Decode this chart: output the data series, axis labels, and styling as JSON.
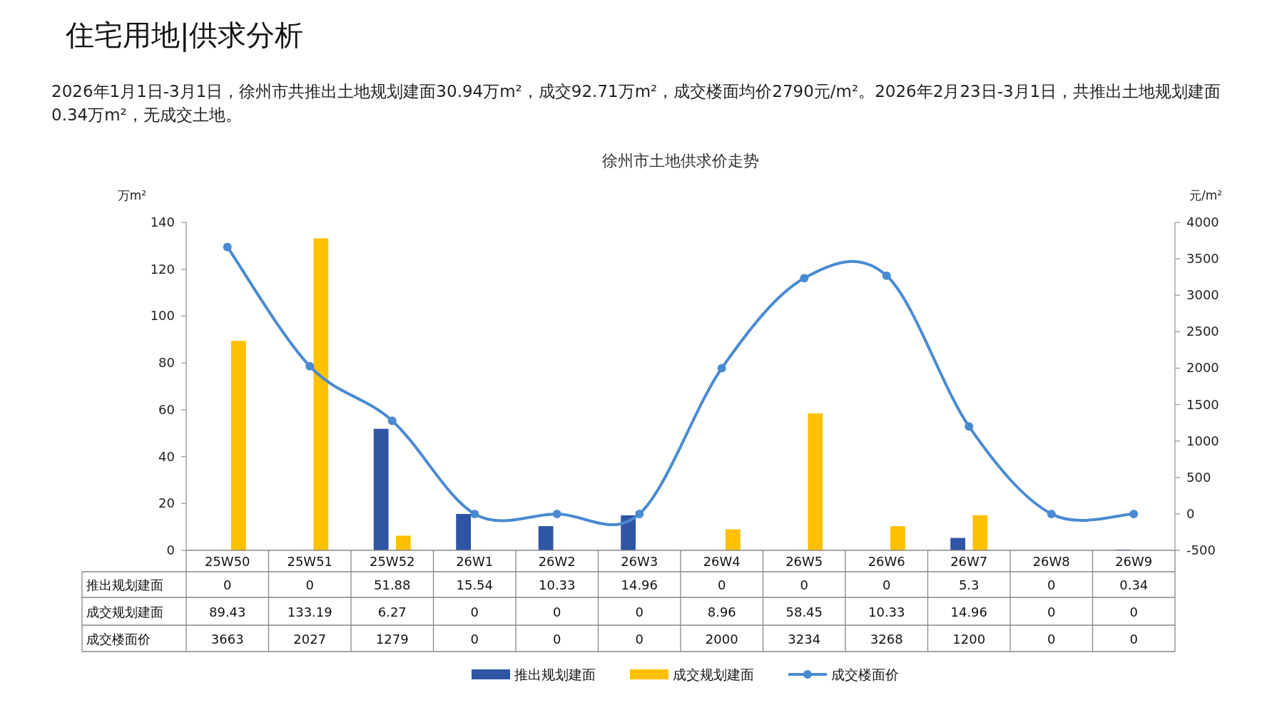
{
  "chart_data": {
    "type": "bar",
    "title": "徐州市土地供求价走势",
    "annotations": [
      "住宅用地|供求分析",
      "2026年1月1日-3月1日，徐州市共推出土地规划建面30.94万m²，成交92.71万m²，成交楼面均价2790元/m²。2026年2月23日-3月1日，共推出土地规划建面0.34万m²，无成交土地。"
    ],
    "categories": [
      "25W50",
      "25W51",
      "25W52",
      "26W1",
      "26W2",
      "26W3",
      "26W4",
      "26W5",
      "26W6",
      "26W7",
      "26W8",
      "26W9"
    ],
    "series": [
      {
        "name": "推出规划建面",
        "color": "#2f55a4",
        "values": [
          0,
          0,
          51.88,
          15.54,
          10.33,
          14.96,
          0,
          0,
          0,
          5.3,
          0,
          0.34
        ]
      },
      {
        "name": "成交规划建面",
        "color": "#ffc000",
        "values": [
          89.43,
          133.19,
          6.27,
          0,
          0,
          0,
          8.96,
          58.45,
          10.33,
          14.96,
          0,
          0
        ]
      },
      {
        "name": "成交楼面价",
        "type": "line",
        "axis": "y2",
        "color": "#4a8ad2",
        "marker": "circle",
        "values": [
          3663,
          2027,
          1279,
          0,
          0,
          0,
          2000,
          3234,
          3268,
          1200,
          0,
          0
        ]
      }
    ],
    "ylabel": "万m²",
    "y2label": "元/m²",
    "ylim": [
      0,
      140
    ],
    "yticks": [
      0,
      20,
      40,
      60,
      80,
      100,
      120,
      140
    ],
    "y2lim": [
      -500,
      4000
    ],
    "y2ticks": [
      -500,
      0,
      500,
      1000,
      1500,
      2000,
      2500,
      3000,
      3500,
      4000
    ],
    "data_labels": true,
    "legend": "bottom"
  }
}
